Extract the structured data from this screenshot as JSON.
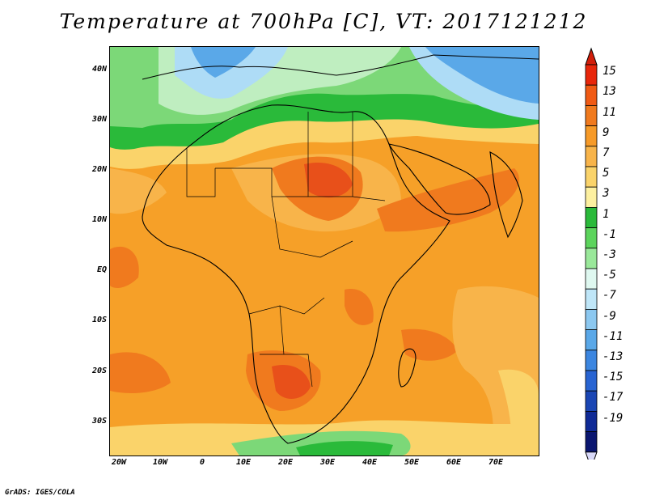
{
  "title": "Temperature at 700hPa [C], VT: 2017121212",
  "credit": "GrADS: IGES/COLA",
  "lat_labels": [
    "40N",
    "30N",
    "20N",
    "10N",
    "EQ",
    "10S",
    "20S",
    "30S"
  ],
  "lon_labels": [
    "20W",
    "10W",
    "0",
    "10E",
    "20E",
    "30E",
    "40E",
    "50E",
    "60E",
    "70E"
  ],
  "colorbar": {
    "labels": [
      "15",
      "13",
      "11",
      "9",
      "7",
      "5",
      "3",
      "1",
      "-1",
      "-3",
      "-5",
      "-7",
      "-9",
      "-11",
      "-13",
      "-15",
      "-17",
      "-19"
    ],
    "colors": [
      "#e8260a",
      "#f05a14",
      "#f07a1e",
      "#f69a28",
      "#f8b44a",
      "#fad36a",
      "#fdf0a0",
      "#2aba3a",
      "#5cd45c",
      "#9ae89a",
      "#dff8f0",
      "#bfe6f8",
      "#8cc8f0",
      "#5aa8e8",
      "#3c86e0",
      "#2864d2",
      "#1a46b4",
      "#0f2a96",
      "#0a1670"
    ],
    "top_arrow_color": "#d21e0a",
    "bottom_arrow_color": "#d8d8f8"
  },
  "field_colors": {
    "base": "#f6a028",
    "hot": "#f07a1e",
    "very_hot": "#e8501a",
    "warm": "#f8b44a",
    "mild": "#fad36a",
    "cool": "#fdf0a0",
    "green_dark": "#2aba3a",
    "green_light": "#7cd878",
    "mint": "#bfeec0",
    "light_blue": "#aedcf6",
    "blue": "#5aa8e8",
    "deep_blue": "#2864d2"
  }
}
